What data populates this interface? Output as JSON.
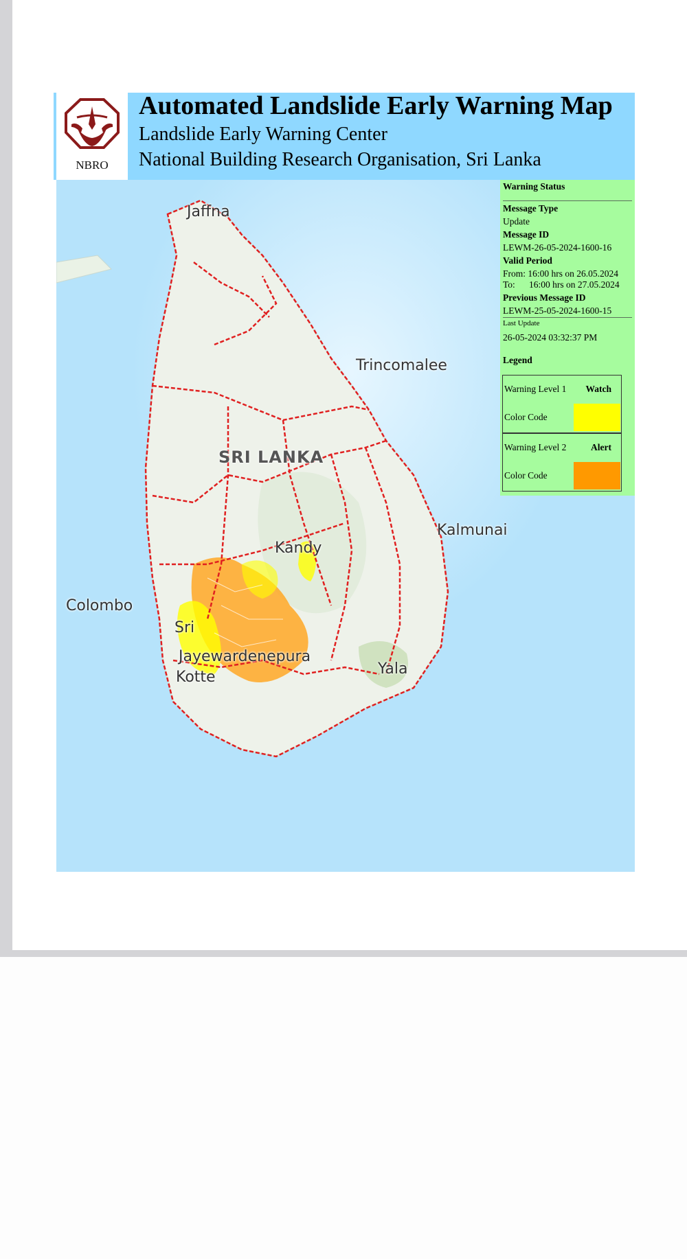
{
  "header": {
    "logo_text": "NBRO",
    "title": "Automated Landslide Early Warning Map",
    "subtitle1": "Landslide Early Warning Center",
    "subtitle2": "National Building Research Organisation, Sri Lanka"
  },
  "map": {
    "places": {
      "jaffna": "Jaffna",
      "trincomalee": "Trincomalee",
      "sri_lanka": "SRI LANKA",
      "kalmunai": "Kalmunai",
      "kandy": "Kandy",
      "colombo": "Colombo",
      "sri": "Sri",
      "jayewardenepura": "Jayewardenepura",
      "kotte": "Kotte",
      "yala": "Yala"
    },
    "colors": {
      "sea": "#b6e3fb",
      "land": "#eef2ea",
      "boundary": "#e02020",
      "watch": "#ffff00",
      "alert": "#ff9900"
    }
  },
  "status": {
    "heading": "Warning Status",
    "message_type_label": "Message Type",
    "message_type": "Update",
    "message_id_label": "Message ID",
    "message_id": "LEWM-26-05-2024-1600-16",
    "valid_period_label": "Valid Period",
    "valid_from": "From: 16:00 hrs on 26.05.2024",
    "valid_to": "To:      16:00 hrs on 27.05.2024",
    "previous_id_label": "Previous Message ID",
    "previous_id": "LEWM-25-05-2024-1600-15",
    "last_update_label": "Last Update",
    "last_update": "26-05-2024 03:32:37 PM"
  },
  "legend": {
    "heading": "Legend",
    "items": [
      {
        "level_label": "Warning Level 1",
        "level_name": "Watch",
        "color_label": "Color Code",
        "color": "#ffff00"
      },
      {
        "level_label": "Warning Level 2",
        "level_name": "Alert",
        "color_label": "Color Code",
        "color": "#ff9900"
      }
    ]
  }
}
